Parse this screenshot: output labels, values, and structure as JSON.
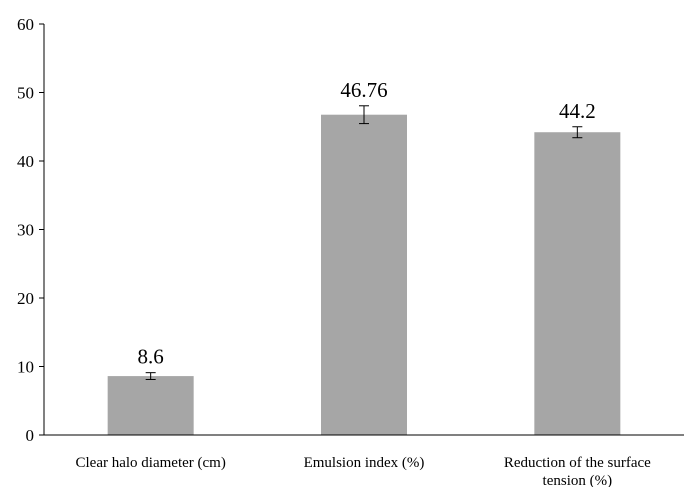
{
  "chart_data": {
    "type": "bar",
    "title": "",
    "xlabel": "",
    "ylabel": "",
    "ylim": [
      0,
      60
    ],
    "yticks": [
      0,
      10,
      20,
      30,
      40,
      50,
      60
    ],
    "grid": false,
    "categories": [
      [
        "Clear halo diameter (cm)"
      ],
      [
        "Emulsion index (%)"
      ],
      [
        "Reduction of the surface",
        "tension (%)"
      ]
    ],
    "values": [
      8.6,
      46.76,
      44.2
    ],
    "data_labels": [
      "8.6",
      "46.76",
      "44.2"
    ],
    "error": [
      0.5,
      1.3,
      0.8
    ],
    "colors": {
      "bar": "#a6a6a6",
      "axis": "#000000",
      "text": "#000000"
    }
  }
}
